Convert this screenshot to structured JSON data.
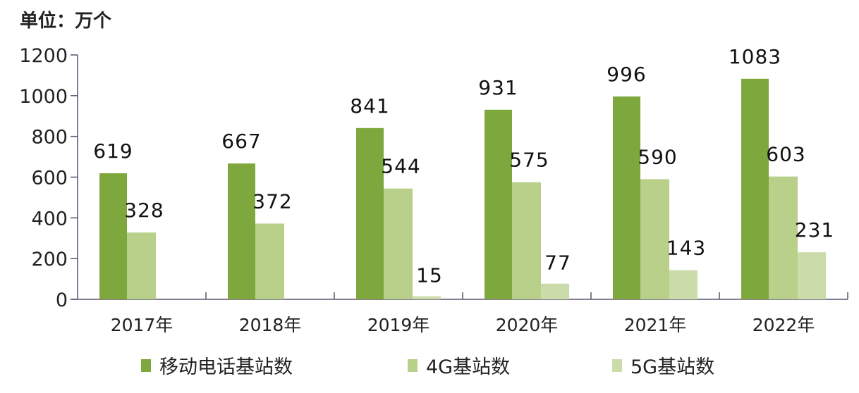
{
  "chart_data": {
    "type": "bar",
    "title": "",
    "unit_label": "单位：万个",
    "categories": [
      "2017年",
      "2018年",
      "2019年",
      "2020年",
      "2021年",
      "2022年"
    ],
    "series": [
      {
        "name": "移动电话基站数",
        "color": "#7ea83e",
        "values": [
          619,
          667,
          841,
          931,
          996,
          1083
        ]
      },
      {
        "name": "4G基站数",
        "color": "#b9d08b",
        "values": [
          328,
          372,
          544,
          575,
          590,
          603
        ]
      },
      {
        "name": "5G基站数",
        "color": "#cbdcaa",
        "values": [
          null,
          null,
          15,
          77,
          143,
          231
        ]
      }
    ],
    "ylim": [
      0,
      1200
    ],
    "yticks": [
      0,
      200,
      400,
      600,
      800,
      1000,
      1200
    ],
    "grid": false,
    "legend": "bottom"
  }
}
